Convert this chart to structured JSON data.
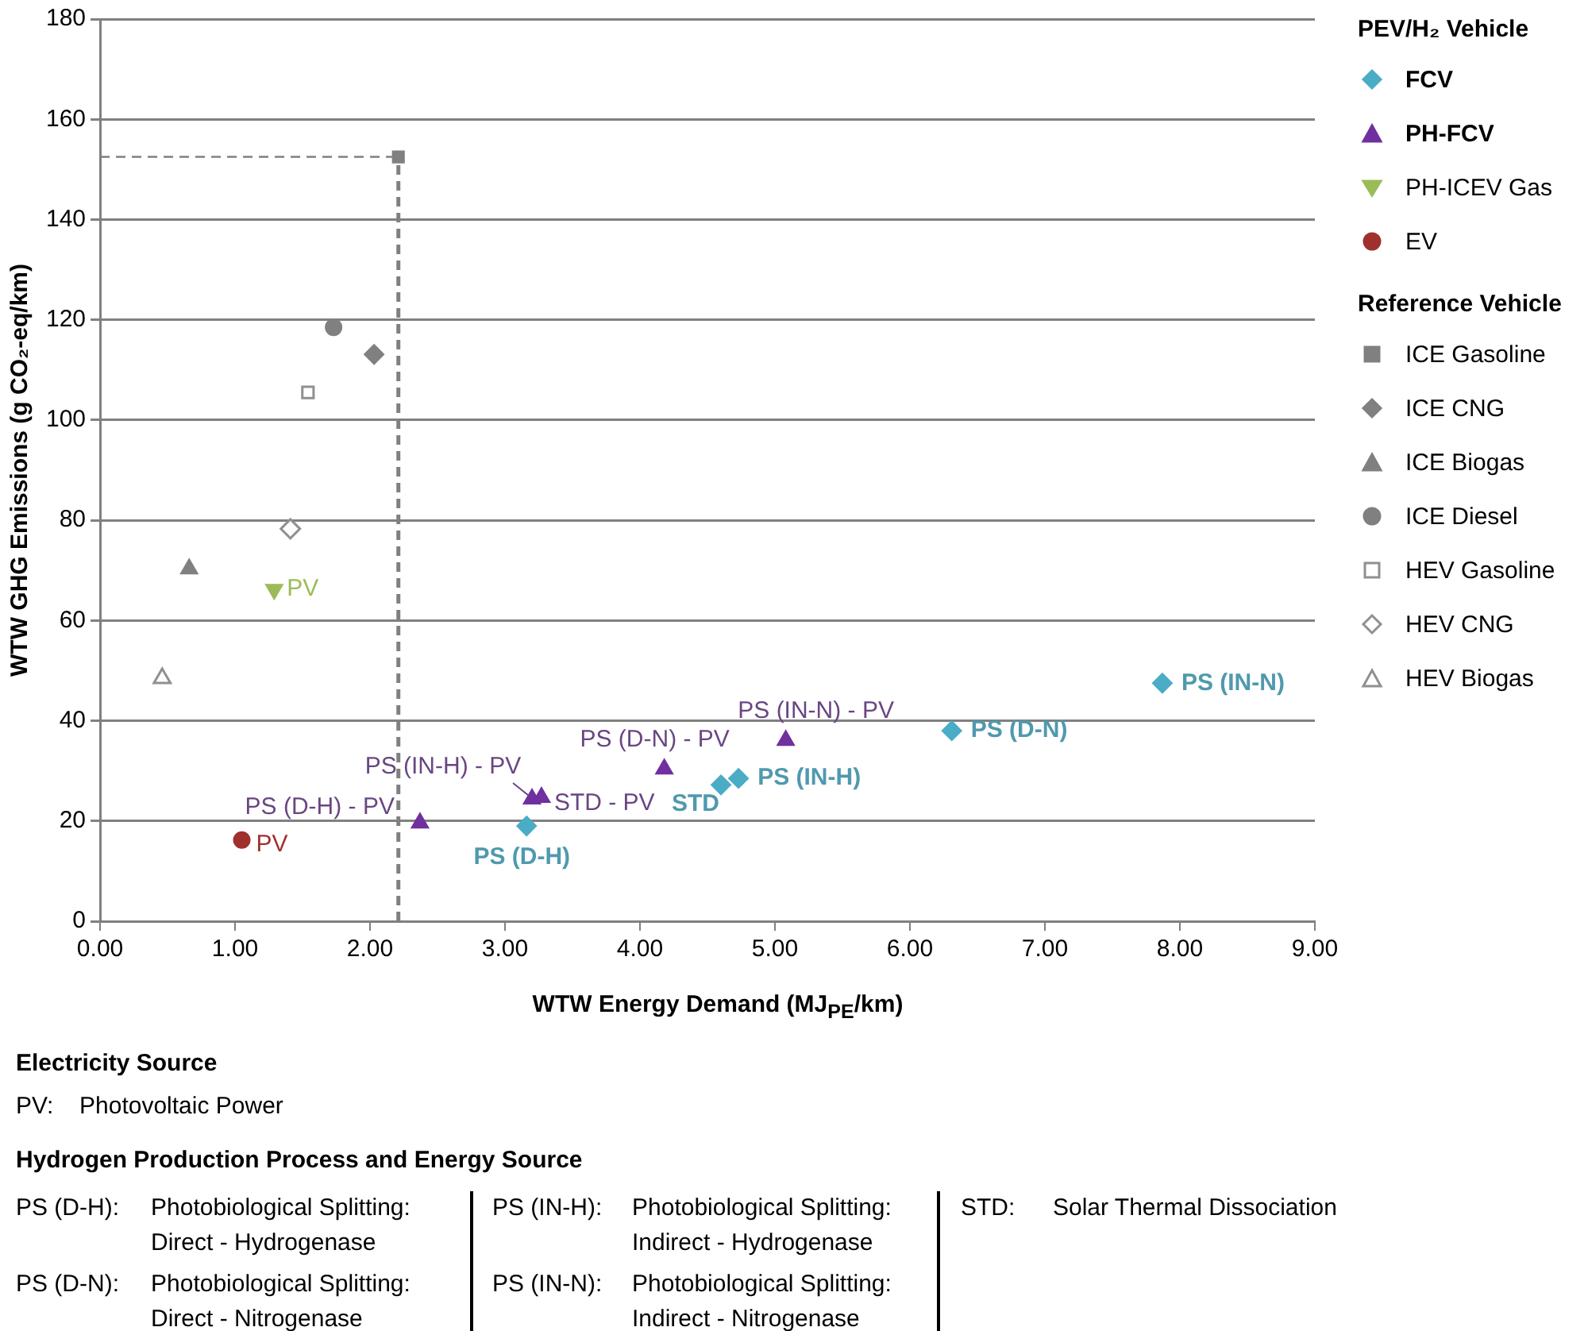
{
  "chart_data": {
    "type": "scatter",
    "xlabel": "WTW Energy Demand (MJ$_{PE}$/km)",
    "ylabel": "WTW GHG Emissions (g CO₂-eq/km)",
    "legend_title": "PEV/H₂ Vehicle",
    "legend": "top right",
    "grid": "y",
    "xlim": [
      0,
      9
    ],
    "xticks": [
      {
        "value": 0,
        "label": "0.00"
      },
      {
        "value": 1,
        "label": "1.00"
      },
      {
        "value": 2,
        "label": "2.00"
      },
      {
        "value": 3,
        "label": "3.00"
      },
      {
        "value": 4,
        "label": "4.00"
      },
      {
        "value": 5,
        "label": "5.00"
      },
      {
        "value": 6,
        "label": "6.00"
      },
      {
        "value": 7,
        "label": "7.00"
      },
      {
        "value": 8,
        "label": "8.00"
      },
      {
        "value": 9,
        "label": "9.00"
      }
    ],
    "ylim": [
      0,
      180
    ],
    "yticks": [
      0,
      20,
      40,
      60,
      80,
      100,
      120,
      140,
      160,
      180
    ],
    "series": [
      {
        "name": "FCV",
        "color": "#4bacc6",
        "marker": "diamond",
        "x": [
          3.16,
          4.6,
          4.73,
          6.31,
          7.87
        ],
        "values": [
          19.0,
          27.2,
          28.5,
          38.0,
          47.5
        ]
      },
      {
        "name": "PH-FCV",
        "color": "#7030a0",
        "marker": "triangle",
        "x": [
          2.37,
          3.2,
          3.27,
          4.18,
          5.08
        ],
        "values": [
          19.6,
          24.4,
          24.7,
          30.4,
          36.1
        ]
      },
      {
        "name": "PH-ICEV Gas",
        "color": "#9bbb59",
        "marker": "triangle-down",
        "x": [
          1.29
        ],
        "values": [
          66.2
        ]
      },
      {
        "name": "EV",
        "color": "#a0302e",
        "marker": "circle",
        "x": [
          1.05
        ],
        "values": [
          16.2
        ]
      },
      {
        "name": "ICE Gasoline",
        "color": "#808080",
        "marker": "square",
        "x": [
          2.21
        ],
        "values": [
          152.5
        ]
      },
      {
        "name": "ICE CNG",
        "color": "#808080",
        "marker": "diamond",
        "x": [
          2.03
        ],
        "values": [
          113.1
        ]
      },
      {
        "name": "ICE Biogas",
        "color": "#808080",
        "marker": "triangle",
        "x": [
          0.66
        ],
        "values": [
          70.3
        ]
      },
      {
        "name": "ICE Diesel",
        "color": "#808080",
        "marker": "circle",
        "x": [
          1.73
        ],
        "values": [
          118.5
        ]
      },
      {
        "name": "HEV Gasoline",
        "color": "#909090",
        "marker": "square-open",
        "x": [
          1.54
        ],
        "values": [
          105.5
        ]
      },
      {
        "name": "HEV CNG",
        "color": "#909090",
        "marker": "diamond-open",
        "x": [
          1.41
        ],
        "values": [
          78.3
        ]
      },
      {
        "name": "HEV Biogas",
        "color": "#909090",
        "marker": "triangle-open",
        "x": [
          0.46
        ],
        "values": [
          48.5
        ]
      }
    ],
    "ref_lines": [
      {
        "axis": "x",
        "value": 2.21,
        "color": "#808080",
        "line_style": "dashed"
      },
      {
        "axis": "y",
        "value": 152.5,
        "color": "#808080",
        "line_style": "dashed"
      }
    ],
    "annotations": [
      "Reference Vehicle",
      "Electricity Source",
      "PV:",
      "Photovoltaic Power",
      "Hydrogen Production Process and Energy Source",
      "PS (D-H):",
      "Photobiological Splitting: Direct - Hydrogenase",
      "PS (IN-H):",
      "Photobiological Splitting: Indirect - Hydrogenase",
      "STD:",
      "Solar Thermal Dissociation",
      "PS (D-N):",
      "Photobiological Splitting: Direct - Nitrogenase",
      "PS (IN-N):",
      "Photobiological Splitting: Indirect - Nitrogenase",
      {
        "text": "PV",
        "x": 1.29,
        "y": 66.2
      },
      {
        "text": "PV",
        "x": 1.05,
        "y": 16.2
      },
      {
        "text": "PS (D-H)",
        "x": 3.16,
        "y": 19.0
      },
      {
        "text": "STD",
        "x": 4.6,
        "y": 27.2
      },
      {
        "text": "PS (IN-H)",
        "x": 4.73,
        "y": 28.5
      },
      {
        "text": "PS (D-N)",
        "x": 6.31,
        "y": 38.0
      },
      {
        "text": "PS (IN-N)",
        "x": 7.87,
        "y": 47.5
      },
      {
        "text": "PS (D-H) - PV",
        "x": 2.37,
        "y": 19.6
      },
      {
        "text": "PS (IN-H) - PV",
        "x": 3.2,
        "y": 24.4
      },
      {
        "text": "STD - PV",
        "x": 3.27,
        "y": 24.7
      },
      {
        "text": "PS (D-N) - PV",
        "x": 4.18,
        "y": 30.4
      },
      {
        "text": "PS (IN-N) - PV",
        "x": 5.08,
        "y": 36.1
      }
    ]
  }
}
